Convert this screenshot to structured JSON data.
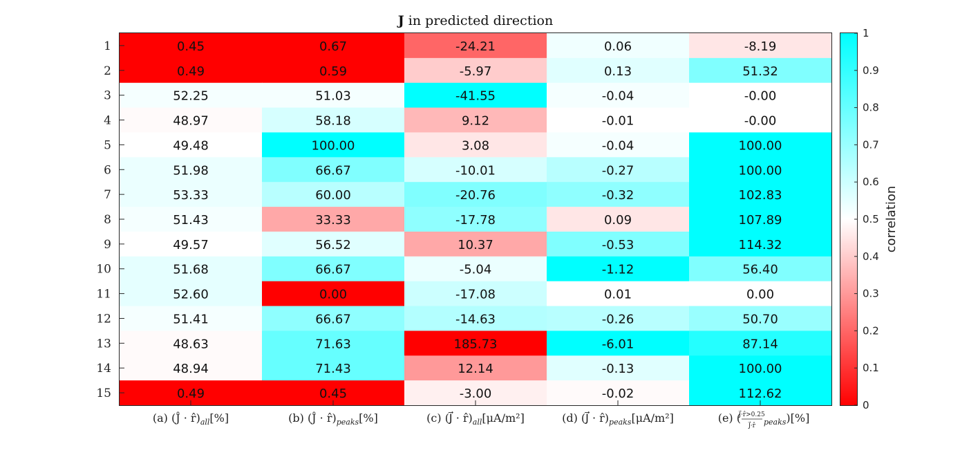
{
  "chart_data": {
    "type": "heatmap",
    "title_bold": "J",
    "title_rest": " in predicted direction",
    "row_labels": [
      "1",
      "2",
      "3",
      "4",
      "5",
      "6",
      "7",
      "8",
      "9",
      "10",
      "11",
      "12",
      "13",
      "14",
      "15"
    ],
    "columns": [
      {
        "label": "(a) (Ĵ · r̂)",
        "sub": "all",
        "suffix": "[%]"
      },
      {
        "label": "(b) (Ĵ · r̂)",
        "sub": "peaks",
        "suffix": "[%]"
      },
      {
        "label": "(c) (J⃗ · r̂)",
        "sub": "all",
        "suffix": "[μA/m²]"
      },
      {
        "label": "(d) (J⃗ · r̂)",
        "sub": "peaks",
        "suffix": "[μA/m²]"
      },
      {
        "label": "(e) (",
        "frac_num": "J⃗·r̂>0.25",
        "frac_den": "J⃗·r̂",
        "sub": "peaks",
        "suffix": ")[%]"
      }
    ],
    "cell_text": [
      [
        "0.45",
        "0.67",
        "-24.21",
        "0.06",
        "-8.19"
      ],
      [
        "0.49",
        "0.59",
        "-5.97",
        "0.13",
        "51.32"
      ],
      [
        "52.25",
        "51.03",
        "-41.55",
        "-0.04",
        "-0.00"
      ],
      [
        "48.97",
        "58.18",
        "9.12",
        "-0.01",
        "-0.00"
      ],
      [
        "49.48",
        "100.00",
        "3.08",
        "-0.04",
        "100.00"
      ],
      [
        "51.98",
        "66.67",
        "-10.01",
        "-0.27",
        "100.00"
      ],
      [
        "53.33",
        "60.00",
        "-20.76",
        "-0.32",
        "102.83"
      ],
      [
        "51.43",
        "33.33",
        "-17.78",
        "0.09",
        "107.89"
      ],
      [
        "49.57",
        "56.52",
        "10.37",
        "-0.53",
        "114.32"
      ],
      [
        "51.68",
        "66.67",
        "-5.04",
        "-1.12",
        "56.40"
      ],
      [
        "52.60",
        "0.00",
        "-17.08",
        "0.01",
        "0.00"
      ],
      [
        "51.41",
        "66.67",
        "-14.63",
        "-0.26",
        "50.70"
      ],
      [
        "48.63",
        "71.63",
        "185.73",
        "-6.01",
        "87.14"
      ],
      [
        "48.94",
        "71.43",
        "12.14",
        "-0.13",
        "100.00"
      ],
      [
        "0.49",
        "0.45",
        "-3.00",
        "-0.02",
        "112.62"
      ]
    ],
    "correlation": [
      [
        0.0,
        0.0,
        0.2,
        0.53,
        0.45
      ],
      [
        0.0,
        0.0,
        0.4,
        0.56,
        0.75
      ],
      [
        0.52,
        0.52,
        1.0,
        0.52,
        0.5
      ],
      [
        0.49,
        0.58,
        0.36,
        0.5,
        0.5
      ],
      [
        0.5,
        1.0,
        0.45,
        0.52,
        1.0
      ],
      [
        0.54,
        0.75,
        0.58,
        0.64,
        1.0
      ],
      [
        0.54,
        0.64,
        0.75,
        0.72,
        1.0
      ],
      [
        0.52,
        0.33,
        0.72,
        0.45,
        1.0
      ],
      [
        0.5,
        0.56,
        0.33,
        0.75,
        1.0
      ],
      [
        0.55,
        0.75,
        0.54,
        1.0,
        0.75
      ],
      [
        0.55,
        0.0,
        0.6,
        0.5,
        0.5
      ],
      [
        0.52,
        0.72,
        0.65,
        0.64,
        0.7
      ],
      [
        0.49,
        0.8,
        0.0,
        1.0,
        0.93
      ],
      [
        0.49,
        0.8,
        0.3,
        0.56,
        1.0
      ],
      [
        0.0,
        0.0,
        0.47,
        0.49,
        1.0
      ]
    ],
    "colorbar": {
      "label": "correlation",
      "range": [
        0,
        1
      ],
      "ticks": [
        "0",
        "0.1",
        "0.2",
        "0.3",
        "0.4",
        "0.5",
        "0.6",
        "0.7",
        "0.8",
        "0.9",
        "1"
      ],
      "low_color": "#ff0000",
      "mid_color": "#ffffff",
      "high_color": "#00ffff"
    }
  }
}
